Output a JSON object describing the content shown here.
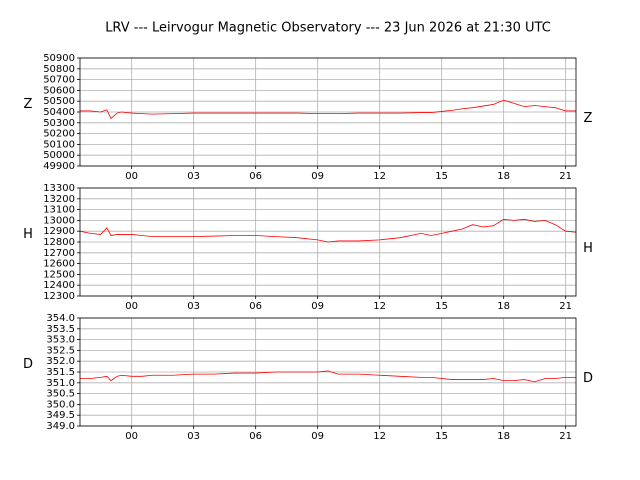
{
  "title": "LRV --- Leirvogur Magnetic Observatory --- 23 Jun 2026 at 21:30 UTC",
  "chart_data": [
    {
      "type": "line",
      "ylabel": "Z",
      "ylabel_right": "Z",
      "color": "#ff0000",
      "grid": true,
      "xlim": [
        -2.5,
        21.5
      ],
      "xticks": [
        {
          "value": 0,
          "label": "00"
        },
        {
          "value": 3,
          "label": "03"
        },
        {
          "value": 6,
          "label": "06"
        },
        {
          "value": 9,
          "label": "09"
        },
        12,
        15,
        18,
        21
      ],
      "ylim": [
        49900,
        50900
      ],
      "yticks": [
        49900,
        50000,
        50100,
        50200,
        50300,
        50400,
        50500,
        50600,
        50700,
        50800,
        50900
      ],
      "x": [
        -2.5,
        -2,
        -1.5,
        -1.2,
        -1,
        -0.7,
        -0.5,
        0,
        0.5,
        1,
        2,
        3,
        4,
        5,
        6,
        7,
        8,
        9,
        9.5,
        10,
        11,
        12,
        13,
        14,
        14.5,
        15,
        15.5,
        16,
        16.5,
        17,
        17.5,
        18,
        18.5,
        19,
        19.5,
        20,
        20.5,
        21,
        21.5
      ],
      "values": [
        50410,
        50410,
        50400,
        50420,
        50340,
        50390,
        50400,
        50390,
        50385,
        50380,
        50385,
        50390,
        50390,
        50390,
        50390,
        50390,
        50390,
        50385,
        50385,
        50385,
        50390,
        50390,
        50390,
        50395,
        50395,
        50405,
        50415,
        50430,
        50440,
        50455,
        50470,
        50510,
        50480,
        50450,
        50460,
        50450,
        50440,
        50410,
        50410
      ]
    },
    {
      "type": "line",
      "ylabel": "H",
      "ylabel_right": "H",
      "color": "#ff0000",
      "grid": true,
      "xlim": [
        -2.5,
        21.5
      ],
      "xticks": [
        {
          "value": 0,
          "label": "00"
        },
        {
          "value": 3,
          "label": "03"
        },
        {
          "value": 6,
          "label": "06"
        },
        {
          "value": 9,
          "label": "09"
        },
        12,
        15,
        18,
        21
      ],
      "ylim": [
        12300,
        13300
      ],
      "yticks": [
        12300,
        12400,
        12500,
        12600,
        12700,
        12800,
        12900,
        13000,
        13100,
        13200,
        13300
      ],
      "x": [
        -2.5,
        -2,
        -1.5,
        -1.2,
        -1,
        -0.7,
        -0.5,
        0,
        0.5,
        1,
        2,
        3,
        4,
        5,
        6,
        7,
        8,
        9,
        9.5,
        10,
        11,
        12,
        13,
        14,
        14.5,
        15,
        15.5,
        16,
        16.5,
        17,
        17.5,
        18,
        18.5,
        19,
        19.5,
        20,
        20.5,
        21,
        21.5
      ],
      "values": [
        12900,
        12880,
        12870,
        12930,
        12860,
        12870,
        12870,
        12870,
        12860,
        12850,
        12850,
        12850,
        12855,
        12860,
        12860,
        12850,
        12840,
        12820,
        12800,
        12810,
        12810,
        12820,
        12840,
        12880,
        12860,
        12880,
        12900,
        12920,
        12960,
        12940,
        12950,
        13010,
        13000,
        13010,
        12990,
        13000,
        12960,
        12900,
        12890
      ]
    },
    {
      "type": "line",
      "ylabel": "D",
      "ylabel_right": "D",
      "color": "#ff0000",
      "grid": true,
      "xlim": [
        -2.5,
        21.5
      ],
      "xticks": [
        {
          "value": 0,
          "label": "00"
        },
        {
          "value": 3,
          "label": "03"
        },
        {
          "value": 6,
          "label": "06"
        },
        {
          "value": 9,
          "label": "09"
        },
        12,
        15,
        18,
        21
      ],
      "ylim": [
        349,
        354
      ],
      "yticks": [
        {
          "value": 349,
          "label": "349.0"
        },
        349.5,
        {
          "value": 350,
          "label": "350.0"
        },
        350.5,
        {
          "value": 351,
          "label": "351.0"
        },
        351.5,
        {
          "value": 352,
          "label": "352.0"
        },
        352.5,
        {
          "value": 353,
          "label": "353.0"
        },
        353.5,
        {
          "value": 354,
          "label": "354.0"
        }
      ],
      "x": [
        -2.5,
        -2,
        -1.5,
        -1.2,
        -1,
        -0.7,
        -0.5,
        0,
        0.5,
        1,
        2,
        3,
        4,
        5,
        6,
        7,
        8,
        9,
        9.5,
        10,
        11,
        12,
        13,
        14,
        14.5,
        15,
        15.5,
        16,
        16.5,
        17,
        17.5,
        18,
        18.5,
        19,
        19.5,
        20,
        20.5,
        21,
        21.5
      ],
      "values": [
        351.2,
        351.2,
        351.25,
        351.3,
        351.1,
        351.3,
        351.35,
        351.3,
        351.3,
        351.35,
        351.35,
        351.4,
        351.4,
        351.45,
        351.45,
        351.5,
        351.5,
        351.5,
        351.55,
        351.4,
        351.4,
        351.35,
        351.3,
        351.25,
        351.25,
        351.2,
        351.15,
        351.15,
        351.15,
        351.15,
        351.2,
        351.1,
        351.1,
        351.15,
        351.05,
        351.2,
        351.2,
        351.25,
        351.25
      ]
    }
  ]
}
